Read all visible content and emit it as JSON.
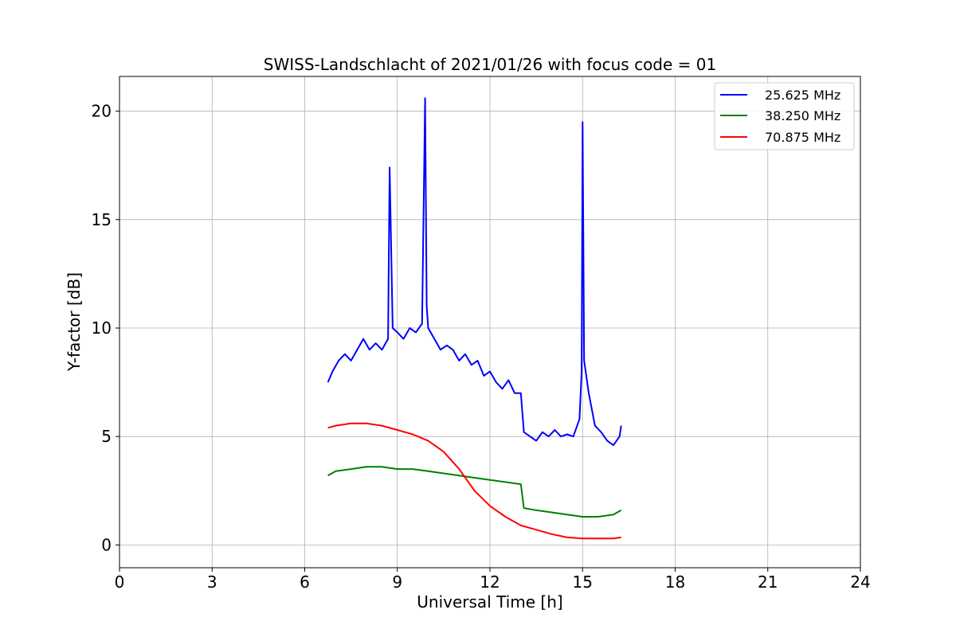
{
  "chart_data": {
    "type": "line",
    "title": "SWISS-Landschlacht of 2021/01/26 with focus code = 01",
    "xlabel": "Universal Time [h]",
    "ylabel": "Y-factor [dB]",
    "xlim": [
      0,
      24
    ],
    "ylim": [
      -1.05,
      21.6
    ],
    "xticks": [
      0,
      3,
      6,
      9,
      12,
      15,
      18,
      21,
      24
    ],
    "xtick_labels": [
      "0",
      "3",
      "6",
      "9",
      "12",
      "15",
      "18",
      "21",
      "24"
    ],
    "yticks": [
      0,
      5,
      10,
      15,
      20
    ],
    "ytick_labels": [
      "0",
      "5",
      "10",
      "15",
      "20"
    ],
    "grid": true,
    "legend": {
      "placement": "top-right"
    },
    "series": [
      {
        "name": "25.625 MHz",
        "color": "#0000ff",
        "x": [
          6.75,
          6.9,
          7.1,
          7.3,
          7.5,
          7.7,
          7.9,
          8.1,
          8.3,
          8.5,
          8.7,
          8.75,
          8.85,
          9.0,
          9.2,
          9.4,
          9.6,
          9.8,
          9.9,
          9.95,
          10.0,
          10.2,
          10.4,
          10.6,
          10.8,
          11.0,
          11.2,
          11.4,
          11.6,
          11.8,
          12.0,
          12.2,
          12.4,
          12.6,
          12.8,
          13.0,
          13.1,
          13.3,
          13.5,
          13.7,
          13.9,
          14.1,
          14.3,
          14.5,
          14.7,
          14.9,
          14.97,
          15.0,
          15.05,
          15.2,
          15.4,
          15.6,
          15.8,
          16.0,
          16.2,
          16.25
        ],
        "values": [
          7.5,
          8.0,
          8.5,
          8.8,
          8.5,
          9.0,
          9.5,
          9.0,
          9.3,
          9.0,
          9.5,
          17.4,
          10.0,
          9.8,
          9.5,
          10.0,
          9.8,
          10.2,
          20.6,
          11.0,
          10.0,
          9.5,
          9.0,
          9.2,
          9.0,
          8.5,
          8.8,
          8.3,
          8.5,
          7.8,
          8.0,
          7.5,
          7.2,
          7.6,
          7.0,
          7.0,
          5.2,
          5.0,
          4.8,
          5.2,
          5.0,
          5.3,
          5.0,
          5.1,
          5.0,
          5.8,
          8.0,
          19.5,
          8.5,
          7.0,
          5.5,
          5.2,
          4.8,
          4.6,
          5.0,
          5.5
        ]
      },
      {
        "name": "38.250 MHz",
        "color": "#008000",
        "x": [
          6.75,
          7.0,
          7.5,
          8.0,
          8.5,
          9.0,
          9.5,
          10.0,
          10.5,
          11.0,
          11.5,
          12.0,
          12.5,
          13.0,
          13.1,
          13.5,
          14.0,
          14.5,
          15.0,
          15.5,
          16.0,
          16.25
        ],
        "values": [
          3.2,
          3.4,
          3.5,
          3.6,
          3.6,
          3.5,
          3.5,
          3.4,
          3.3,
          3.2,
          3.1,
          3.0,
          2.9,
          2.8,
          1.7,
          1.6,
          1.5,
          1.4,
          1.3,
          1.3,
          1.4,
          1.6
        ]
      },
      {
        "name": "70.875 MHz",
        "color": "#ff0000",
        "x": [
          6.75,
          7.0,
          7.5,
          8.0,
          8.5,
          9.0,
          9.5,
          10.0,
          10.5,
          11.0,
          11.5,
          12.0,
          12.5,
          13.0,
          13.5,
          14.0,
          14.5,
          15.0,
          15.5,
          16.0,
          16.25
        ],
        "values": [
          5.4,
          5.5,
          5.6,
          5.6,
          5.5,
          5.3,
          5.1,
          4.8,
          4.3,
          3.5,
          2.5,
          1.8,
          1.3,
          0.9,
          0.7,
          0.5,
          0.35,
          0.3,
          0.3,
          0.3,
          0.35
        ]
      }
    ]
  }
}
